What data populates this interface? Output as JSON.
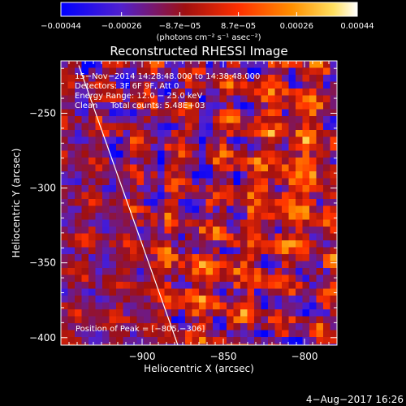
{
  "chart_data": {
    "type": "heatmap",
    "title": "Reconstructed RHESSI Image",
    "xlabel": "Heliocentric X (arcsec)",
    "ylabel": "Heliocentric Y (arcsec)",
    "xlim": [
      -950,
      -780
    ],
    "ylim": [
      -405,
      -215
    ],
    "x_ticks": [
      -900,
      -850,
      -800
    ],
    "x_tick_labels": [
      "−900",
      "−850",
      "−800"
    ],
    "y_ticks": [
      -400,
      -350,
      -300,
      -250
    ],
    "y_tick_labels": [
      "−400",
      "−350",
      "−300",
      "−250"
    ],
    "colorbar": {
      "min": -0.00044,
      "max": 0.00044,
      "ticks": [
        -0.00044,
        -0.00026,
        -8.7e-05,
        8.7e-05,
        0.00026,
        0.00044
      ],
      "tick_labels": [
        "−0.00044",
        "−0.00026",
        "−8.7e−05",
        "8.7e−05",
        "0.00026",
        "0.00044"
      ],
      "label": "(photons cm⁻² s⁻¹ asec⁻²)",
      "colors": [
        "#0000ff",
        "#6020c0",
        "#a01010",
        "#ff3000",
        "#ff9000",
        "#ffe060",
        "#ffffff"
      ]
    },
    "annotations": [
      "15−Nov−2014 14:28:48.000 to 14:38:48.000",
      "Detectors: 3F 6F 9F, Att 0",
      "Energy Range: 12.0 − 25.0 keV",
      "Clean     Total counts: 5.48E+03"
    ],
    "peak_label": "Position of Peak = [−805,−306]",
    "peak": [
      -805,
      -306
    ],
    "limb_line": [
      [
        -939,
        -218
      ],
      [
        -878,
        -405
      ]
    ]
  },
  "footer": {
    "timestamp": "4−Aug−2017 16:26"
  }
}
